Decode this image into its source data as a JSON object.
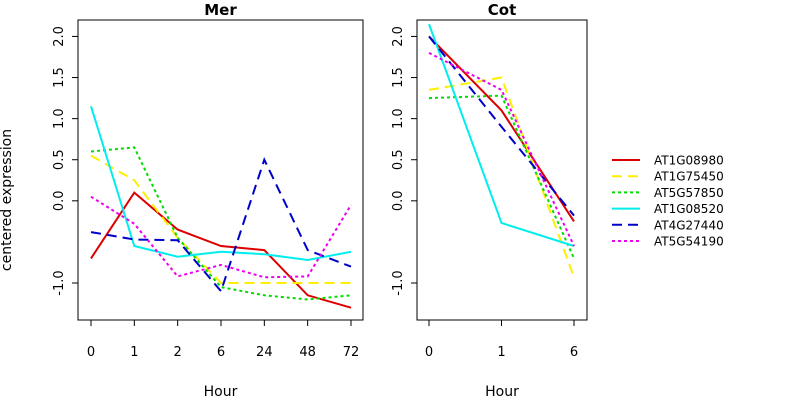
{
  "chart_data": [
    {
      "type": "line",
      "title": "Mer",
      "xlabel": "Hour",
      "ylabel": "centered expression",
      "x": [
        "0",
        "1",
        "2",
        "6",
        "24",
        "48",
        "72"
      ],
      "yticks": [
        "-1.0",
        "0.0",
        "0.5",
        "1.0",
        "1.5",
        "2.0"
      ],
      "ylim": [
        -1.45,
        2.2
      ],
      "series": [
        {
          "name": "AT1G08980",
          "values": [
            -0.7,
            0.1,
            -0.35,
            -0.55,
            -0.6,
            -1.15,
            -1.3
          ]
        },
        {
          "name": "AT1G75450",
          "values": [
            0.55,
            0.25,
            -0.45,
            -1.0,
            -1.0,
            -1.0,
            -1.0
          ]
        },
        {
          "name": "AT5G57850",
          "values": [
            0.6,
            0.65,
            -0.45,
            -1.05,
            -1.15,
            -1.2,
            -1.15
          ]
        },
        {
          "name": "AT1G08520",
          "values": [
            1.15,
            -0.55,
            -0.68,
            -0.62,
            -0.65,
            -0.72,
            -0.62
          ]
        },
        {
          "name": "AT4G27440",
          "values": [
            -0.38,
            -0.47,
            -0.48,
            -1.1,
            0.5,
            -0.6,
            -0.8
          ]
        },
        {
          "name": "AT5G54190",
          "values": [
            0.05,
            -0.28,
            -0.92,
            -0.78,
            -0.93,
            -0.92,
            -0.05
          ]
        }
      ]
    },
    {
      "type": "line",
      "title": "Cot",
      "xlabel": "Hour",
      "ylabel": "",
      "x": [
        "0",
        "1",
        "6"
      ],
      "yticks": [
        "-1.0",
        "0.0",
        "0.5",
        "1.0",
        "1.5",
        "2.0"
      ],
      "ylim": [
        -1.45,
        2.2
      ],
      "series": [
        {
          "name": "AT1G08980",
          "values": [
            2.0,
            1.1,
            -0.25
          ]
        },
        {
          "name": "AT1G75450",
          "values": [
            1.35,
            1.5,
            -0.93
          ]
        },
        {
          "name": "AT5G57850",
          "values": [
            1.25,
            1.28,
            -0.7
          ]
        },
        {
          "name": "AT1G08520",
          "values": [
            2.15,
            -0.27,
            -0.55
          ]
        },
        {
          "name": "AT4G27440",
          "values": [
            2.0,
            0.9,
            -0.18
          ]
        },
        {
          "name": "AT5G54190",
          "values": [
            1.8,
            1.35,
            -0.55
          ]
        }
      ]
    }
  ],
  "legend": {
    "placement": "right",
    "entries": [
      {
        "name": "AT1G08980",
        "color": "#dd0000",
        "dash": "solid"
      },
      {
        "name": "AT1G75450",
        "color": "#ffee00",
        "dash": "dashed"
      },
      {
        "name": "AT5G57850",
        "color": "#00dd00",
        "dash": "dotted"
      },
      {
        "name": "AT1G08520",
        "color": "#00eeee",
        "dash": "solid"
      },
      {
        "name": "AT4G27440",
        "color": "#0000cc",
        "dash": "dashed"
      },
      {
        "name": "AT5G54190",
        "color": "#ee00ee",
        "dash": "dotted"
      }
    ]
  }
}
